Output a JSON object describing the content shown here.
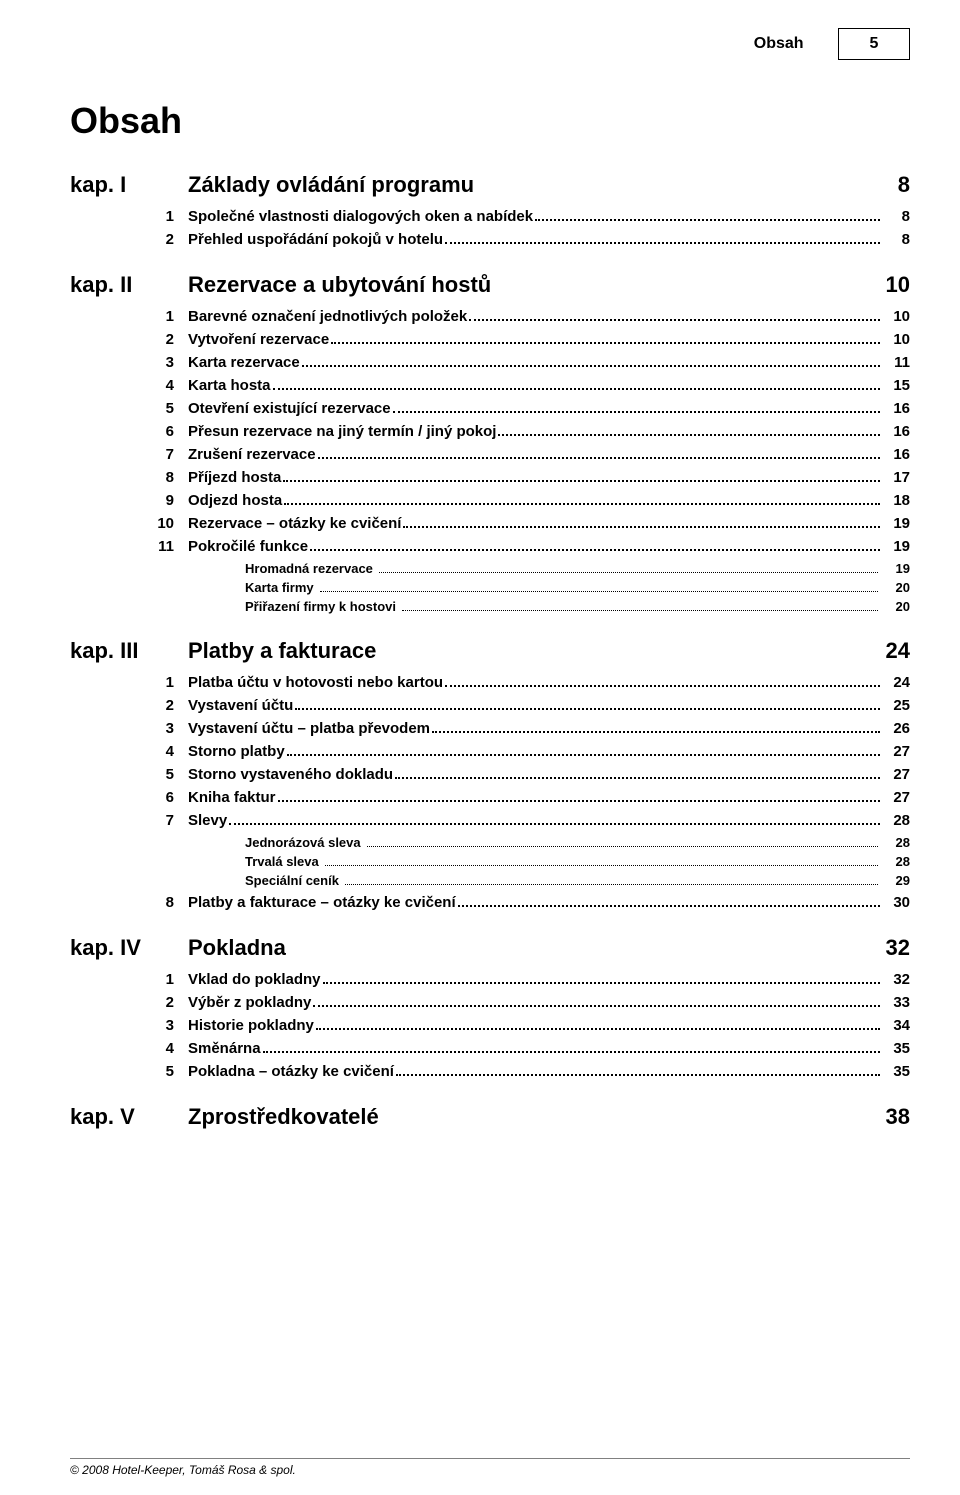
{
  "running_head": {
    "title": "Obsah",
    "page": "5"
  },
  "doc_title": "Obsah",
  "footer": "© 2008 Hotel-Keeper, Tomáš Rosa & spol.",
  "chapters": [
    {
      "label": "kap. I",
      "title": "Základy ovládání programu",
      "page": "8",
      "sections": [
        {
          "num": "1",
          "title": "Společné vlastnosti dialogových oken a nabídek",
          "page": "8"
        },
        {
          "num": "2",
          "title": "Přehled uspořádání pokojů v hotelu",
          "page": "8"
        }
      ]
    },
    {
      "label": "kap. II",
      "title": "Rezervace a ubytování hostů",
      "page": "10",
      "sections": [
        {
          "num": "1",
          "title": "Barevné označení jednotlivých položek",
          "page": "10"
        },
        {
          "num": "2",
          "title": "Vytvoření rezervace",
          "page": "10"
        },
        {
          "num": "3",
          "title": "Karta rezervace",
          "page": "11"
        },
        {
          "num": "4",
          "title": "Karta hosta",
          "page": "15"
        },
        {
          "num": "5",
          "title": "Otevření existující rezervace",
          "page": "16"
        },
        {
          "num": "6",
          "title": "Přesun rezervace na jiný termín / jiný pokoj",
          "page": "16"
        },
        {
          "num": "7",
          "title": "Zrušení rezervace",
          "page": "16"
        },
        {
          "num": "8",
          "title": "Příjezd hosta",
          "page": "17"
        },
        {
          "num": "9",
          "title": "Odjezd hosta",
          "page": "18"
        },
        {
          "num": "10",
          "title": "Rezervace – otázky ke cvičení",
          "page": "19"
        },
        {
          "num": "11",
          "title": "Pokročilé funkce",
          "page": "19",
          "subs": [
            {
              "title": "Hromadná rezervace",
              "page": "19"
            },
            {
              "title": "Karta firmy",
              "page": "20"
            },
            {
              "title": "Přiřazení firmy k hostovi",
              "page": "20"
            }
          ]
        }
      ]
    },
    {
      "label": "kap. III",
      "title": "Platby a fakturace",
      "page": "24",
      "sections": [
        {
          "num": "1",
          "title": "Platba účtu v hotovosti nebo kartou",
          "page": "24"
        },
        {
          "num": "2",
          "title": "Vystavení účtu",
          "page": "25"
        },
        {
          "num": "3",
          "title": "Vystavení účtu – platba převodem",
          "page": "26"
        },
        {
          "num": "4",
          "title": "Storno platby",
          "page": "27"
        },
        {
          "num": "5",
          "title": "Storno vystaveného dokladu",
          "page": "27"
        },
        {
          "num": "6",
          "title": "Kniha faktur",
          "page": "27"
        },
        {
          "num": "7",
          "title": "Slevy",
          "page": "28",
          "subs": [
            {
              "title": "Jednorázová sleva",
              "page": "28"
            },
            {
              "title": "Trvalá sleva",
              "page": "28"
            },
            {
              "title": "Speciální ceník",
              "page": "29"
            }
          ]
        },
        {
          "num": "8",
          "title": "Platby a fakturace – otázky ke cvičení",
          "page": "30"
        }
      ]
    },
    {
      "label": "kap. IV",
      "title": "Pokladna",
      "page": "32",
      "sections": [
        {
          "num": "1",
          "title": "Vklad do pokladny",
          "page": "32"
        },
        {
          "num": "2",
          "title": "Výběr z pokladny",
          "page": "33"
        },
        {
          "num": "3",
          "title": "Historie pokladny",
          "page": "34"
        },
        {
          "num": "4",
          "title": "Směnárna",
          "page": "35"
        },
        {
          "num": "5",
          "title": "Pokladna – otázky ke cvičení",
          "page": "35"
        }
      ]
    },
    {
      "label": "kap. V",
      "title": "Zprostředkovatelé",
      "page": "38",
      "sections": []
    }
  ]
}
